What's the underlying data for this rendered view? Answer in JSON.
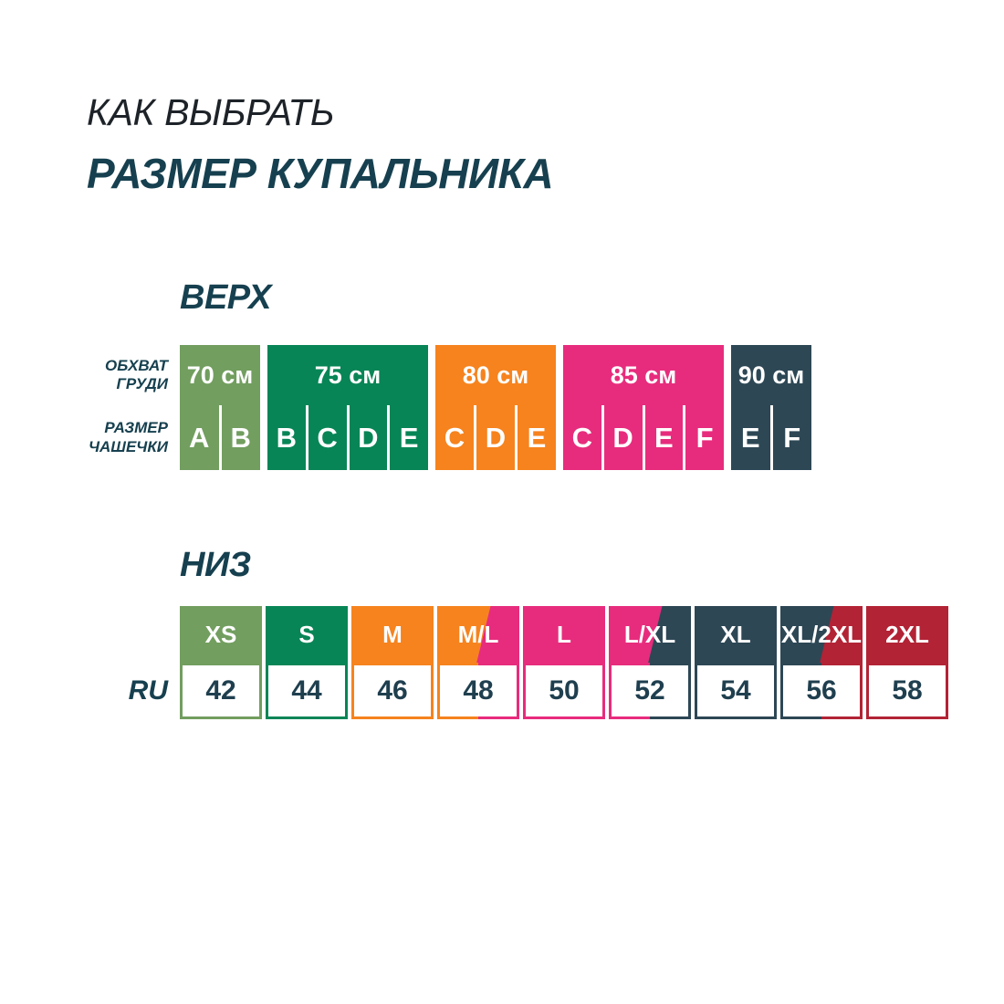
{
  "title": {
    "line1": "КАК ВЫБРАТЬ",
    "line2": "РАЗМЕР КУПАЛЬНИКА"
  },
  "colors": {
    "palette": {
      "light_green": "#729E5F",
      "green": "#088556",
      "orange": "#F6831E",
      "pink": "#E72C7D",
      "navy": "#2D4755",
      "red": "#B22335"
    },
    "text_dark": "#1D2328",
    "text_navy": "#16404F"
  },
  "top_section": {
    "heading": "ВЕРХ",
    "row_labels": {
      "chest": "ОБХВАТ\nГРУДИ",
      "cup": "РАЗМЕР\nЧАШЕЧКИ"
    },
    "groups": [
      {
        "chest": "70 см",
        "color": "light_green",
        "cups": [
          "A",
          "B"
        ]
      },
      {
        "chest": "75 см",
        "color": "green",
        "cups": [
          "B",
          "C",
          "D",
          "E"
        ]
      },
      {
        "chest": "80 см",
        "color": "orange",
        "cups": [
          "C",
          "D",
          "E"
        ]
      },
      {
        "chest": "85 см",
        "color": "pink",
        "cups": [
          "C",
          "D",
          "E",
          "F"
        ]
      },
      {
        "chest": "90 см",
        "color": "navy",
        "cups": [
          "E",
          "F"
        ]
      }
    ]
  },
  "bottom_section": {
    "heading": "НИЗ",
    "row_label": "RU",
    "columns": [
      {
        "size": "XS",
        "ru": "42",
        "colors": [
          "light_green"
        ]
      },
      {
        "size": "S",
        "ru": "44",
        "colors": [
          "green"
        ]
      },
      {
        "size": "M",
        "ru": "46",
        "colors": [
          "orange"
        ]
      },
      {
        "size": "M/L",
        "ru": "48",
        "colors": [
          "orange",
          "pink"
        ]
      },
      {
        "size": "L",
        "ru": "50",
        "colors": [
          "pink"
        ]
      },
      {
        "size": "L/XL",
        "ru": "52",
        "colors": [
          "pink",
          "navy"
        ]
      },
      {
        "size": "XL",
        "ru": "54",
        "colors": [
          "navy"
        ]
      },
      {
        "size": "XL/2XL",
        "ru": "56",
        "colors": [
          "navy",
          "red"
        ]
      },
      {
        "size": "2XL",
        "ru": "58",
        "colors": [
          "red"
        ]
      }
    ]
  },
  "chart_data": [
    {
      "type": "table",
      "title": "ВЕРХ",
      "row_labels": [
        "ОБХВАТ ГРУДИ",
        "РАЗМЕР ЧАШЕЧКИ"
      ],
      "groups": [
        {
          "chest_cm": 70,
          "cups": [
            "A",
            "B"
          ],
          "color": "#729E5F"
        },
        {
          "chest_cm": 75,
          "cups": [
            "B",
            "C",
            "D",
            "E"
          ],
          "color": "#088556"
        },
        {
          "chest_cm": 80,
          "cups": [
            "C",
            "D",
            "E"
          ],
          "color": "#F6831E"
        },
        {
          "chest_cm": 85,
          "cups": [
            "C",
            "D",
            "E",
            "F"
          ],
          "color": "#E72C7D"
        },
        {
          "chest_cm": 90,
          "cups": [
            "E",
            "F"
          ],
          "color": "#2D4755"
        }
      ]
    },
    {
      "type": "table",
      "title": "НИЗ",
      "row_labels": [
        "RU"
      ],
      "categories": [
        "XS",
        "S",
        "M",
        "M/L",
        "L",
        "L/XL",
        "XL",
        "XL/2XL",
        "2XL"
      ],
      "values": [
        42,
        44,
        46,
        48,
        50,
        52,
        54,
        56,
        58
      ]
    }
  ]
}
